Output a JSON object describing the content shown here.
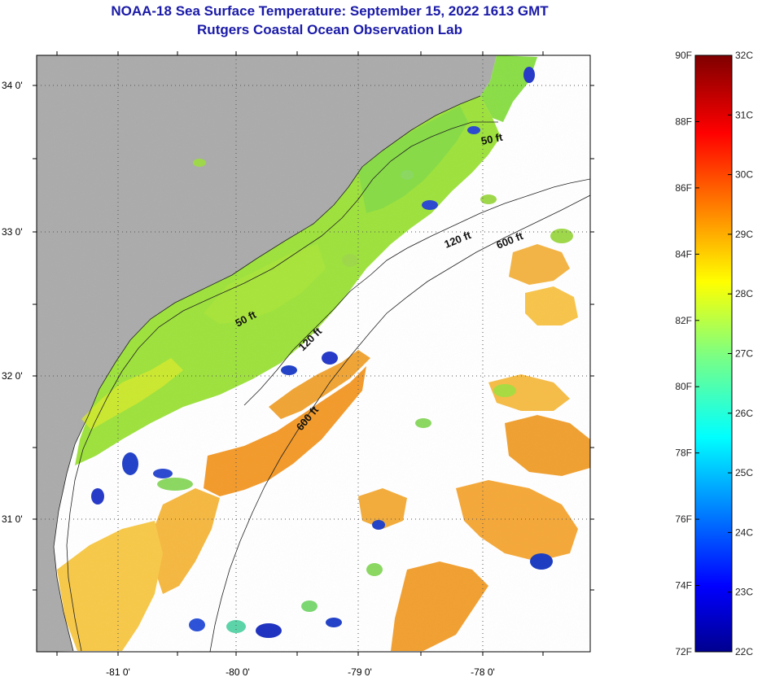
{
  "title": {
    "line1": "NOAA-18 Sea Surface Temperature:  September 15, 2022 1613 GMT",
    "line2": "Rutgers Coastal Ocean Observation Lab"
  },
  "axes": {
    "lat_labels": [
      "34 0'",
      "33 0'",
      "32 0'",
      "31 0'"
    ],
    "lon_labels": [
      "-81 0'",
      "-80 0'",
      "-79 0'",
      "-78 0'"
    ]
  },
  "contours": {
    "f50_a": "50 ft",
    "f50_b": "50 ft",
    "f120_a": "120 ft",
    "f120_b": "120 ft",
    "f600_a": "600 ft",
    "f600_b": "600 ft"
  },
  "colorbar": {
    "fahrenheit": [
      "90F",
      "88F",
      "86F",
      "84F",
      "82F",
      "80F",
      "78F",
      "76F",
      "74F",
      "72F"
    ],
    "celsius": [
      "32C",
      "31C",
      "30C",
      "29C",
      "28C",
      "27C",
      "26C",
      "25C",
      "24C",
      "23C",
      "22C"
    ]
  },
  "colors": {
    "land": "#ababab",
    "cloud": "#ffffff",
    "title": "#1a1aa8"
  }
}
